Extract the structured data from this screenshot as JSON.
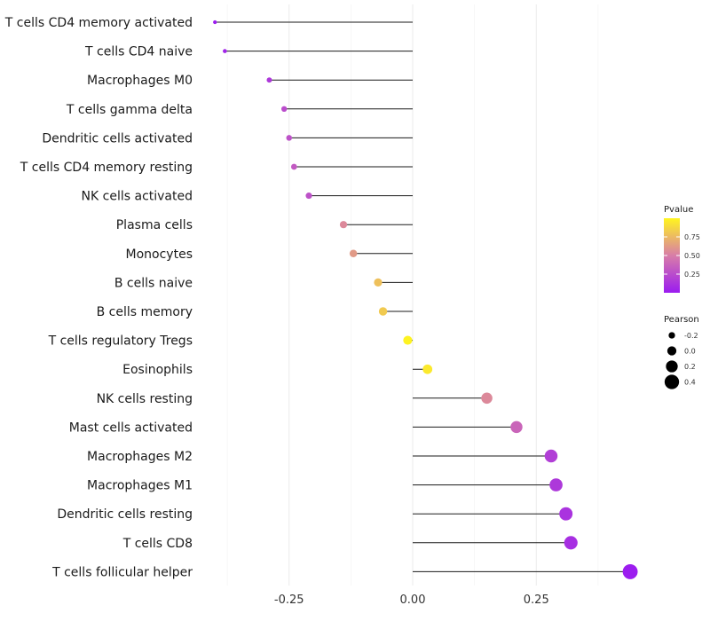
{
  "chart_data": {
    "type": "lollipop",
    "xlabel": "",
    "ylabel": "",
    "xlim": [
      -0.4,
      0.45
    ],
    "xticks": [
      -0.25,
      0.0,
      0.25
    ],
    "xtick_labels": [
      "-0.25",
      "0.00",
      "0.25"
    ],
    "grid": true,
    "categories": [
      "T cells CD4 memory activated",
      "T cells CD4 naive",
      "Macrophages M0",
      "T cells gamma delta",
      "Dendritic cells activated",
      "T cells CD4 memory resting",
      "NK cells activated",
      "Plasma cells",
      "Monocytes",
      "B cells naive",
      "B cells memory",
      "T cells regulatory  Tregs ",
      "Eosinophils",
      "NK cells resting",
      "Mast cells activated",
      "Macrophages M2",
      "Macrophages M1",
      "Dendritic cells resting",
      "T cells CD8",
      "T cells follicular helper"
    ],
    "pearson": [
      -0.4,
      -0.38,
      -0.29,
      -0.26,
      -0.25,
      -0.24,
      -0.21,
      -0.14,
      -0.12,
      -0.07,
      -0.06,
      -0.01,
      0.03,
      0.15,
      0.21,
      0.28,
      0.29,
      0.31,
      0.32,
      0.44
    ],
    "pvalue": [
      0.01,
      0.05,
      0.15,
      0.25,
      0.28,
      0.32,
      0.28,
      0.55,
      0.62,
      0.78,
      0.82,
      0.99,
      0.95,
      0.55,
      0.38,
      0.18,
      0.15,
      0.12,
      0.1,
      0.01
    ],
    "legend_pvalue": {
      "title": "Pvalue",
      "breaks": [
        0.75,
        0.5,
        0.25
      ],
      "labels": [
        "0.75",
        "0.50",
        "0.25"
      ],
      "range": [
        0.0,
        1.0
      ],
      "color_low": "#9b1bf0",
      "color_mid": "#d87da8",
      "color_high": "#fff51f"
    },
    "legend_pearson": {
      "title": "Pearson",
      "breaks": [
        -0.2,
        0.0,
        0.2,
        0.4
      ],
      "labels": [
        "-0.2",
        "0.0",
        "0.2",
        "0.4"
      ]
    },
    "legend_position": "right"
  }
}
